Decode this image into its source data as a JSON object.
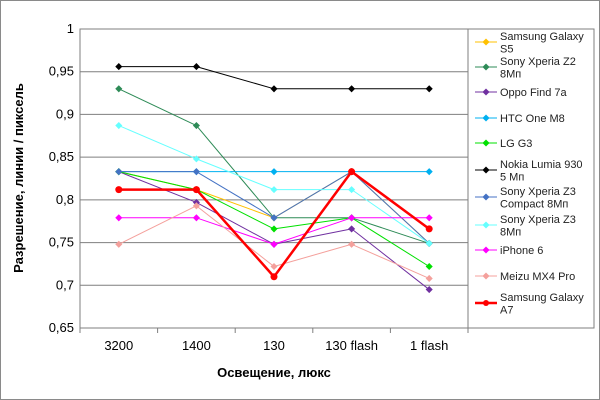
{
  "chart_data": {
    "type": "line",
    "title": "",
    "xlabel": "Освещение, люкс",
    "ylabel": "Разрешение, линии / пиксель",
    "categories": [
      "3200",
      "1400",
      "130",
      "130 flash",
      "1 flash"
    ],
    "ylim": [
      0.65,
      1.0
    ],
    "yticks": [
      0.65,
      0.7,
      0.75,
      0.8,
      0.85,
      0.9,
      0.95,
      1.0
    ],
    "ytick_labels": [
      "0,65",
      "0,7",
      "0,75",
      "0,8",
      "0,85",
      "0,9",
      "0,95",
      "1"
    ],
    "grid": "horizontal",
    "legend_position": "right",
    "series": [
      {
        "name": "Samsung Galaxy S5",
        "legend_lines": [
          "Samsung Galaxy",
          "S5"
        ],
        "color": "#ffc000",
        "width": 1,
        "values": [
          0.833,
          0.812,
          0.779,
          0.833,
          0.749
        ]
      },
      {
        "name": "Sony Xperia Z2 8Мп",
        "legend_lines": [
          "Sony Xperia Z2",
          "8Мп"
        ],
        "color": "#2e8b57",
        "width": 1,
        "values": [
          0.93,
          0.887,
          0.779,
          0.779,
          0.749
        ]
      },
      {
        "name": "Oppo Find 7a",
        "legend_lines": [
          "Oppo Find 7a"
        ],
        "color": "#7030a0",
        "width": 1,
        "values": [
          0.833,
          0.797,
          0.748,
          0.766,
          0.695
        ]
      },
      {
        "name": "HTC One M8",
        "legend_lines": [
          "HTC One M8"
        ],
        "color": "#00b0f0",
        "width": 1,
        "values": [
          0.833,
          0.833,
          0.833,
          0.833,
          0.833
        ]
      },
      {
        "name": "LG G3",
        "legend_lines": [
          "LG G3"
        ],
        "color": "#00e000",
        "width": 1,
        "values": [
          0.833,
          0.812,
          0.766,
          0.779,
          0.722
        ]
      },
      {
        "name": "Nokia Lumia 930 5 Мп",
        "legend_lines": [
          "Nokia Lumia 930",
          "5 Мп"
        ],
        "color": "#000000",
        "width": 1,
        "values": [
          0.956,
          0.956,
          0.93,
          0.93,
          0.93
        ]
      },
      {
        "name": "Sony Xperia Z3 Compact 8Мп",
        "legend_lines": [
          "Sony Xperia Z3",
          "Compact 8Мп"
        ],
        "color": "#4472c4",
        "width": 1,
        "values": [
          0.833,
          0.833,
          0.779,
          0.833,
          0.749
        ]
      },
      {
        "name": "Sony Xperia Z3 8Мп",
        "legend_lines": [
          "Sony Xperia Z3",
          "8Мп"
        ],
        "color": "#66ffff",
        "width": 1,
        "values": [
          0.887,
          0.848,
          0.812,
          0.812,
          0.749
        ]
      },
      {
        "name": "iPhone 6",
        "legend_lines": [
          "iPhone 6"
        ],
        "color": "#ff00ff",
        "width": 1,
        "values": [
          0.779,
          0.779,
          0.748,
          0.779,
          0.779
        ]
      },
      {
        "name": "Meizu MX4 Pro",
        "legend_lines": [
          "Meizu MX4 Pro"
        ],
        "color": "#f4a09c",
        "width": 1,
        "values": [
          0.748,
          0.793,
          0.722,
          0.748,
          0.708
        ]
      },
      {
        "name": "Samsung Galaxy A7",
        "legend_lines": [
          "Samsung Galaxy",
          "A7"
        ],
        "color": "#ff0000",
        "width": 2.5,
        "values": [
          0.812,
          0.812,
          0.71,
          0.833,
          0.766
        ]
      }
    ]
  }
}
